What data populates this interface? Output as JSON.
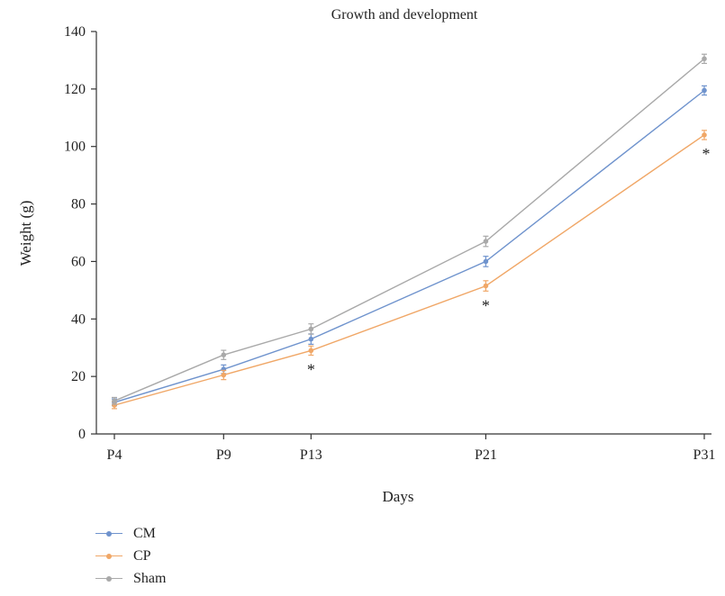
{
  "chart_data": {
    "type": "line",
    "title": "Growth and development",
    "xlabel": "Days",
    "ylabel": "Weight (g)",
    "categories": [
      "P4",
      "P9",
      "P13",
      "P21",
      "P31"
    ],
    "x": [
      4,
      9,
      13,
      21,
      31
    ],
    "ylim": [
      0,
      140
    ],
    "yticks": [
      "0",
      "20",
      "40",
      "60",
      "80",
      "100",
      "120",
      "140"
    ],
    "legend_position": "bottom-left",
    "grid": false,
    "significance_marker": "*",
    "series": [
      {
        "name": "CM",
        "color": "#6f93cd",
        "values": [
          11,
          22.5,
          33,
          60,
          119.5
        ],
        "errors": [
          1.2,
          1.5,
          1.8,
          1.8,
          1.6
        ],
        "significant": [
          false,
          false,
          false,
          false,
          false
        ]
      },
      {
        "name": "CP",
        "color": "#f0a767",
        "values": [
          10,
          20.5,
          29,
          51.5,
          104
        ],
        "errors": [
          1.2,
          1.6,
          1.6,
          1.8,
          1.6
        ],
        "significant": [
          false,
          false,
          true,
          true,
          true
        ]
      },
      {
        "name": "Sham",
        "color": "#a9a9a9",
        "values": [
          11.5,
          27.5,
          36.5,
          67,
          130.5
        ],
        "errors": [
          1.2,
          1.6,
          1.8,
          1.8,
          1.6
        ],
        "significant": [
          false,
          false,
          false,
          false,
          false
        ]
      }
    ]
  }
}
